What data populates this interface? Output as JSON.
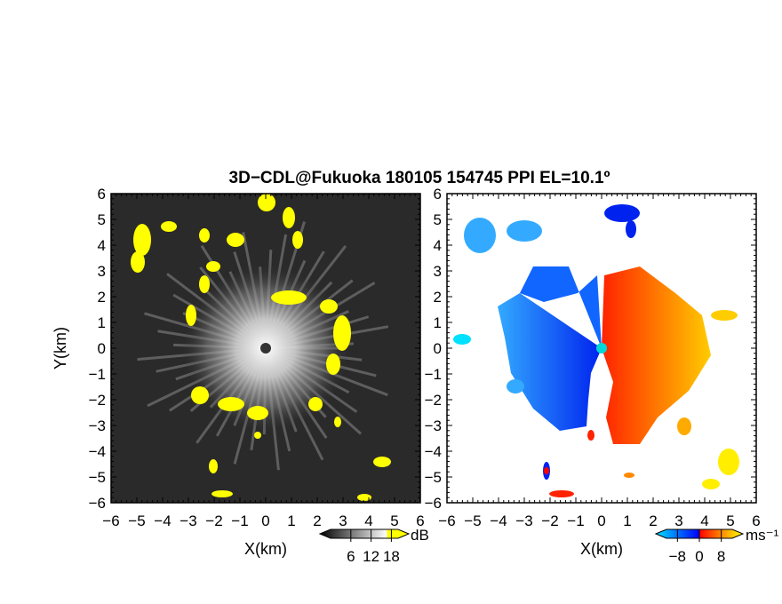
{
  "figure": {
    "title": "3D−CDL@Fukuoka 180105 154745 PPI EL=10.1º"
  },
  "chart_data": [
    {
      "type": "heatmap",
      "panel": "left",
      "quantity": "SNR / reflectivity",
      "xlabel": "X(km)",
      "ylabel": "Y(km)",
      "xlim": [
        -6,
        6
      ],
      "ylim": [
        -6,
        6
      ],
      "x_ticks": [
        "−6",
        "−5",
        "−4",
        "−3",
        "−2",
        "−1",
        "0",
        "1",
        "2",
        "3",
        "4",
        "5",
        "6"
      ],
      "y_ticks": [
        "−6",
        "−5",
        "−4",
        "−3",
        "−2",
        "−1",
        "0",
        "1",
        "2",
        "3",
        "4",
        "5",
        "6"
      ],
      "colorbar": {
        "unit": "dB",
        "ticks": [
          "6",
          "12",
          "18"
        ],
        "tick_values": [
          6,
          12,
          18
        ],
        "range": [
          0,
          20
        ],
        "colors": [
          "#000000",
          "#ffffff",
          "#ffff00"
        ]
      },
      "background_color": "#2a2a2a",
      "echo_color": "#ffff00"
    },
    {
      "type": "heatmap",
      "panel": "right",
      "quantity": "Doppler velocity",
      "xlabel": "X(km)",
      "ylabel": "",
      "xlim": [
        -6,
        6
      ],
      "ylim": [
        -6,
        6
      ],
      "x_ticks": [
        "−6",
        "−5",
        "−4",
        "−3",
        "−2",
        "−1",
        "0",
        "1",
        "2",
        "3",
        "4",
        "5",
        "6"
      ],
      "y_ticks": [
        "−6",
        "−5",
        "−4",
        "−3",
        "−2",
        "−1",
        "0",
        "1",
        "2",
        "3",
        "4",
        "5",
        "6"
      ],
      "colorbar": {
        "unit": "ms⁻¹",
        "ticks": [
          "−8",
          "0",
          "8"
        ],
        "tick_values": [
          -8,
          0,
          8
        ],
        "range": [
          -12,
          12
        ],
        "colors": [
          "#00e0ff",
          "#0000ff",
          "#ff0000",
          "#ffff00"
        ]
      },
      "background_color": "#ffffff"
    }
  ]
}
